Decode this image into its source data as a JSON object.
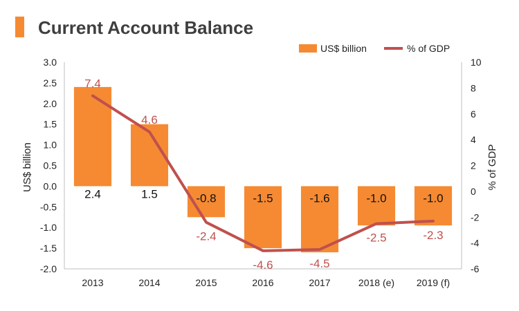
{
  "header": {
    "title": "Current Account Balance",
    "accent_color": "#F58A33"
  },
  "chart_data": {
    "type": "bar+line",
    "categories": [
      "2013",
      "2014",
      "2015",
      "2016",
      "2017",
      "2018 (e)",
      "2019 (f)"
    ],
    "series": [
      {
        "name": "US$ billion",
        "type": "bar",
        "axis": "left",
        "color": "#F58A33",
        "values": [
          2.4,
          1.5,
          -0.75,
          -1.5,
          -1.6,
          -0.95,
          -0.95
        ],
        "labels": [
          "2.4",
          "1.5",
          "-0.8",
          "-1.5",
          "-1.6",
          "-1.0",
          "-1.0"
        ]
      },
      {
        "name": "% of GDP",
        "type": "line",
        "axis": "right",
        "color": "#C0504D",
        "values": [
          7.4,
          4.6,
          -2.4,
          -4.6,
          -4.5,
          -2.5,
          -2.3
        ],
        "labels": [
          "7.4",
          "4.6",
          "-2.4",
          "-4.6",
          "-4.5",
          "-2.5",
          "-2.3"
        ]
      }
    ],
    "y_left": {
      "label": "US$ billion",
      "range": [
        -2.0,
        3.0
      ],
      "ticks": [
        "3.0",
        "2.5",
        "2.0",
        "1.5",
        "1.0",
        "0.5",
        "0.0",
        "-0.5",
        "-1.0",
        "-1.5",
        "-2.0"
      ]
    },
    "y_right": {
      "label": "% of GDP",
      "range": [
        -6,
        10
      ],
      "ticks": [
        "10",
        "8",
        "6",
        "4",
        "2",
        "0",
        "-2",
        "-4",
        "-6"
      ]
    },
    "legend_position": "top-right",
    "grid": false
  }
}
